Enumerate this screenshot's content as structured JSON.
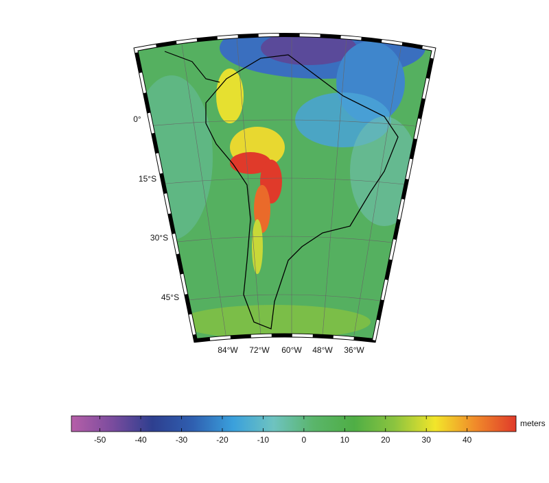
{
  "map": {
    "lat_labels": [
      "0°",
      "15°S",
      "30°S",
      "45°S"
    ],
    "lon_labels": [
      "84°W",
      "72°W",
      "60°W",
      "48°W",
      "36°W"
    ]
  },
  "colorbar": {
    "range": [
      -57,
      52
    ],
    "ticks": [
      -50,
      -40,
      -30,
      -20,
      -10,
      0,
      10,
      20,
      30,
      40
    ],
    "unit": "meters",
    "colors": [
      "#b65fa8",
      "#7b4c9e",
      "#2e3f8f",
      "#2f5fb0",
      "#3aa0dc",
      "#6ec3c0",
      "#5ab56a",
      "#4fae45",
      "#8cc43f",
      "#f2e52a",
      "#f08a2a",
      "#e03a2a"
    ]
  }
}
